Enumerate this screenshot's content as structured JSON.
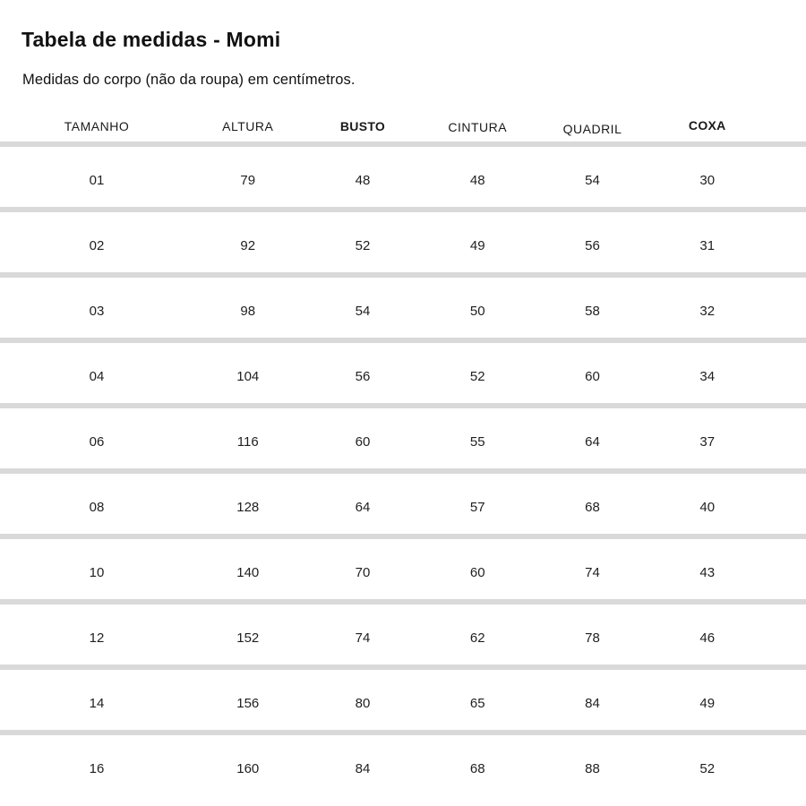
{
  "title": "Tabela de medidas - Momi",
  "subtitle": "Medidas do corpo (não da roupa) em centímetros.",
  "colors": {
    "background": "#ffffff",
    "text": "#1a1a1a",
    "divider": "#d9d9d9"
  },
  "chart_data": {
    "type": "table",
    "title": "Tabela de medidas - Momi",
    "subtitle": "Medidas do corpo (não da roupa) em centímetros.",
    "unit": "centímetros",
    "columns": [
      "TAMANHO",
      "ALTURA",
      "BUSTO",
      "CINTURA",
      "QUADRIL",
      "COXA"
    ],
    "bold_columns": [
      "BUSTO",
      "COXA"
    ],
    "rows": [
      [
        "01",
        "79",
        "48",
        "48",
        "54",
        "30"
      ],
      [
        "02",
        "92",
        "52",
        "49",
        "56",
        "31"
      ],
      [
        "03",
        "98",
        "54",
        "50",
        "58",
        "32"
      ],
      [
        "04",
        "104",
        "56",
        "52",
        "60",
        "34"
      ],
      [
        "06",
        "116",
        "60",
        "55",
        "64",
        "37"
      ],
      [
        "08",
        "128",
        "64",
        "57",
        "68",
        "40"
      ],
      [
        "10",
        "140",
        "70",
        "60",
        "74",
        "43"
      ],
      [
        "12",
        "152",
        "74",
        "62",
        "78",
        "46"
      ],
      [
        "14",
        "156",
        "80",
        "65",
        "84",
        "49"
      ],
      [
        "16",
        "160",
        "84",
        "68",
        "88",
        "52"
      ]
    ]
  }
}
